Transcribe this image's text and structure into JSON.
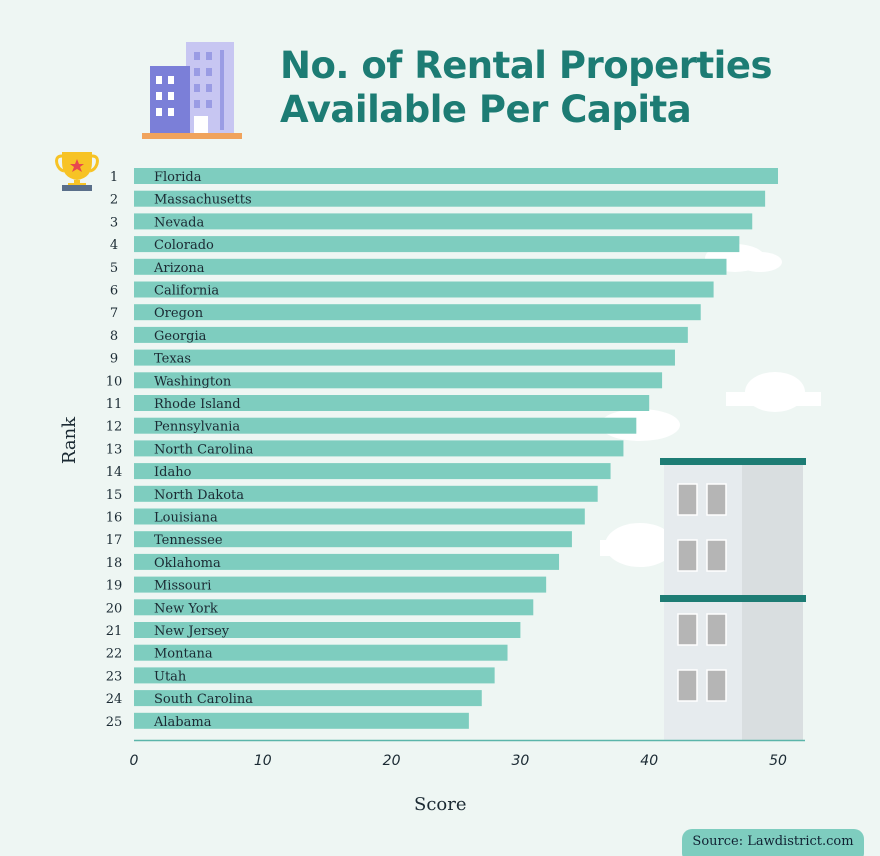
{
  "chart_data": {
    "type": "bar",
    "orientation": "horizontal",
    "title": "No. of Rental Properties Available Per Capita",
    "xlabel": "Score",
    "ylabel": "Rank",
    "xlim": [
      0,
      52
    ],
    "xticks": [
      0,
      10,
      20,
      30,
      40,
      50
    ],
    "grid": false,
    "bar_color": "#7ecdbf",
    "title_color": "#1d7c74",
    "ranks": [
      1,
      2,
      3,
      4,
      5,
      6,
      7,
      8,
      9,
      10,
      11,
      12,
      13,
      14,
      15,
      16,
      17,
      18,
      19,
      20,
      21,
      22,
      23,
      24,
      25
    ],
    "categories": [
      "Florida",
      "Massachusetts",
      "Nevada",
      "Colorado",
      "Arizona",
      "California",
      "Oregon",
      "Georgia",
      "Texas",
      "Washington",
      "Rhode Island",
      "Pennsylvania",
      "North Carolina",
      "Idaho",
      "North Dakota",
      "Louisiana",
      "Tennessee",
      "Oklahoma",
      "Missouri",
      "New York",
      "New Jersey",
      "Montana",
      "Utah",
      "South Carolina",
      "Alabama"
    ],
    "values": [
      50,
      49,
      48,
      47,
      46,
      45,
      44,
      43,
      42,
      41,
      40,
      39,
      38,
      37,
      36,
      35,
      34,
      33,
      32,
      31,
      30,
      29,
      28,
      27,
      26
    ]
  },
  "source": "Source: Lawdistrict.com",
  "icons": [
    "trophy-icon",
    "office-building-icon",
    "apartment-building-illustration",
    "cloud-icon"
  ]
}
